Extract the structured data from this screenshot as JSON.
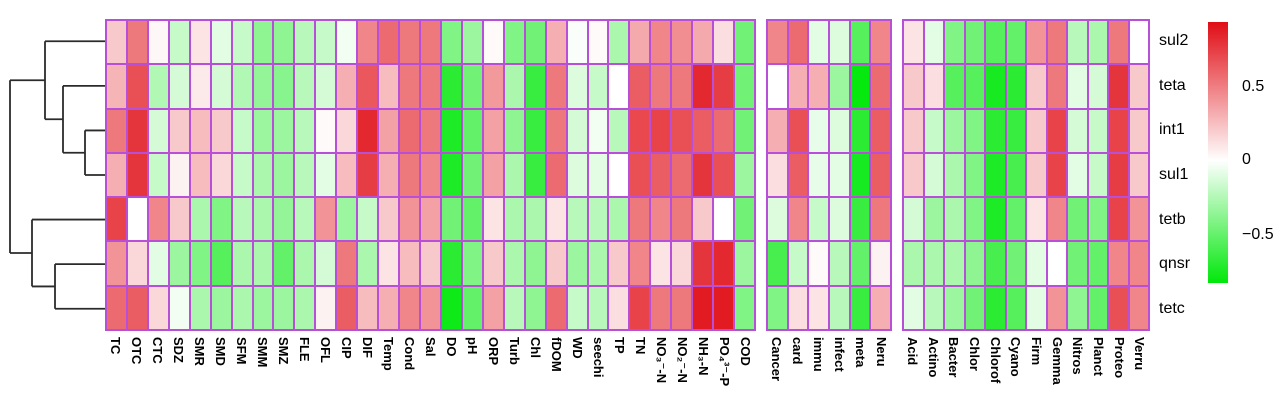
{
  "figure_title": "Correlation heatmap of resistance genes vs environmental, disease and microbial variables",
  "chart_data": {
    "type": "heatmap",
    "rows": [
      "sul2",
      "teta",
      "int1",
      "sul1",
      "tetb",
      "qnsr",
      "tetc"
    ],
    "panels": [
      {
        "name": "antibiotics-environment",
        "columns": [
          "TC",
          "OTC",
          "CTC",
          "SDZ",
          "SMR",
          "SMD",
          "SFM",
          "SMM",
          "SMZ",
          "FLE",
          "OFL",
          "CIP",
          "DIF",
          "Temp",
          "Cond",
          "Sal",
          "DO",
          "pH",
          "ORP",
          "Turb",
          "Chl",
          "fDOM",
          "WD",
          "seechi",
          "TP",
          "TN",
          "NO₃⁻-N",
          "NO₂⁻-N",
          "NH₃-N",
          "PO₄³⁻-P",
          "COD"
        ],
        "values": [
          [
            0.2,
            0.5,
            0.03,
            -0.2,
            0.1,
            -0.1,
            -0.2,
            -0.4,
            -0.4,
            -0.25,
            -0.2,
            -0.05,
            0.45,
            0.55,
            0.5,
            0.5,
            -0.45,
            -0.35,
            0.02,
            -0.45,
            -0.5,
            0.3,
            -0.02,
            0.02,
            -0.3,
            0.32,
            0.45,
            0.42,
            0.32,
            0.12,
            -0.5
          ],
          [
            0.28,
            0.65,
            -0.28,
            -0.15,
            0.08,
            -0.15,
            -0.28,
            -0.38,
            -0.42,
            -0.25,
            -0.15,
            0.3,
            0.62,
            0.25,
            0.5,
            0.5,
            -0.75,
            -0.5,
            0.38,
            -0.3,
            -0.7,
            0.5,
            -0.12,
            -0.2,
            0.0,
            0.6,
            0.5,
            0.5,
            0.8,
            0.72,
            -0.5
          ],
          [
            0.5,
            0.75,
            -0.15,
            0.2,
            0.25,
            0.2,
            -0.2,
            -0.35,
            -0.35,
            -0.25,
            0.02,
            0.15,
            0.8,
            0.35,
            0.55,
            0.5,
            -0.8,
            -0.55,
            0.35,
            -0.4,
            -0.7,
            0.5,
            -0.15,
            -0.05,
            -0.25,
            0.68,
            0.7,
            0.65,
            0.6,
            0.55,
            -0.5
          ],
          [
            0.3,
            0.75,
            -0.2,
            0.05,
            0.25,
            0.15,
            -0.2,
            -0.3,
            -0.35,
            -0.25,
            -0.1,
            0.25,
            0.72,
            0.3,
            0.5,
            0.45,
            -0.8,
            -0.5,
            0.35,
            -0.3,
            -0.7,
            0.55,
            -0.12,
            -0.1,
            0.0,
            0.65,
            0.6,
            0.55,
            0.75,
            0.65,
            -0.35
          ],
          [
            0.7,
            0.0,
            0.45,
            0.2,
            -0.3,
            -0.45,
            -0.25,
            -0.3,
            -0.38,
            -0.25,
            0.4,
            -0.35,
            -0.2,
            0.2,
            0.4,
            0.35,
            -0.5,
            -0.55,
            0.1,
            -0.3,
            -0.3,
            0.1,
            -0.25,
            -0.25,
            -0.3,
            0.5,
            0.45,
            0.5,
            0.2,
            0.0,
            -0.5
          ],
          [
            0.4,
            0.15,
            -0.1,
            -0.35,
            -0.45,
            -0.6,
            -0.3,
            -0.3,
            -0.55,
            -0.3,
            -0.15,
            0.5,
            -0.3,
            0.1,
            0.25,
            0.2,
            -0.75,
            -0.45,
            0.2,
            -0.3,
            -0.4,
            0.2,
            -0.35,
            -0.3,
            0.2,
            0.45,
            0.1,
            0.15,
            0.75,
            0.8,
            -0.35
          ],
          [
            0.55,
            0.6,
            0.15,
            -0.05,
            -0.3,
            -0.35,
            -0.3,
            -0.35,
            -0.35,
            -0.3,
            0.05,
            0.6,
            0.25,
            0.3,
            0.45,
            0.4,
            -0.85,
            -0.55,
            0.35,
            -0.25,
            -0.4,
            0.55,
            -0.2,
            -0.25,
            0.12,
            0.7,
            0.5,
            0.5,
            0.85,
            0.85,
            -0.45
          ]
        ]
      },
      {
        "name": "disease-categories",
        "columns": [
          "Cancer",
          "card",
          "immu",
          "infect",
          "meta",
          "Neru"
        ],
        "values": [
          [
            0.45,
            0.55,
            -0.1,
            -0.12,
            -0.6,
            0.45
          ],
          [
            0.0,
            0.3,
            0.3,
            -0.35,
            -0.88,
            0.55
          ],
          [
            0.3,
            0.65,
            -0.08,
            -0.12,
            -0.75,
            0.6
          ],
          [
            0.12,
            0.6,
            -0.08,
            -0.1,
            -0.82,
            0.6
          ],
          [
            -0.12,
            0.45,
            -0.2,
            -0.12,
            -0.7,
            0.5
          ],
          [
            -0.65,
            -0.2,
            0.02,
            -0.25,
            -0.55,
            0.05
          ],
          [
            -0.45,
            0.12,
            0.1,
            -0.25,
            -0.7,
            0.3
          ]
        ]
      },
      {
        "name": "microbial-phyla",
        "columns": [
          "Acid",
          "Actino",
          "Bacter",
          "Chlor",
          "Chlorof",
          "Cyano",
          "Firm",
          "Gemma",
          "Nitros",
          "Planct",
          "Proteo",
          "Verru"
        ],
        "values": [
          [
            0.1,
            -0.1,
            -0.45,
            -0.5,
            -0.6,
            -0.55,
            0.4,
            0.5,
            -0.25,
            -0.3,
            0.5,
            0.0
          ],
          [
            0.2,
            0.12,
            -0.6,
            -0.6,
            -0.82,
            -0.75,
            0.2,
            0.5,
            -0.1,
            -0.15,
            0.75,
            0.2
          ],
          [
            0.2,
            -0.2,
            -0.35,
            -0.45,
            -0.75,
            -0.7,
            0.2,
            0.7,
            -0.15,
            -0.2,
            0.7,
            0.2
          ],
          [
            0.2,
            -0.15,
            -0.3,
            -0.45,
            -0.8,
            -0.65,
            0.2,
            0.7,
            -0.1,
            -0.2,
            0.72,
            0.2
          ],
          [
            -0.15,
            -0.35,
            -0.3,
            -0.45,
            -0.8,
            -0.55,
            0.1,
            0.45,
            -0.5,
            -0.45,
            0.7,
            0.4
          ],
          [
            -0.3,
            -0.3,
            -0.3,
            -0.4,
            -0.65,
            -0.5,
            -0.1,
            0.0,
            -0.5,
            -0.55,
            0.45,
            0.45
          ],
          [
            -0.1,
            -0.25,
            -0.35,
            -0.5,
            -0.75,
            -0.6,
            -0.1,
            0.4,
            -0.4,
            -0.55,
            0.65,
            0.45
          ]
        ]
      }
    ],
    "colorscale": {
      "max_color": "#e00d15",
      "zero_color": "#ffffff",
      "min_color": "#00e80a",
      "vabs": 0.9,
      "ticks": [
        "0.5",
        "0",
        "−0.5"
      ],
      "legend_position": "right"
    },
    "grid_color": "#b84fd8",
    "dendrogram": {
      "orientation": "left",
      "leaf_order": [
        "sul2",
        "teta",
        "int1",
        "sul1",
        "tetb",
        "qnsr",
        "tetc"
      ],
      "merges": [
        {
          "children": [
            "int1",
            "sul1"
          ],
          "x": 85
        },
        {
          "children": [
            "teta",
            "m0"
          ],
          "x": 63
        },
        {
          "children": [
            "sul2",
            "m1"
          ],
          "x": 45
        },
        {
          "children": [
            "qnsr",
            "tetc"
          ],
          "x": 55
        },
        {
          "children": [
            "tetb",
            "m3"
          ],
          "x": 32
        },
        {
          "children": [
            "m2",
            "m4"
          ],
          "x": 10
        }
      ]
    }
  }
}
